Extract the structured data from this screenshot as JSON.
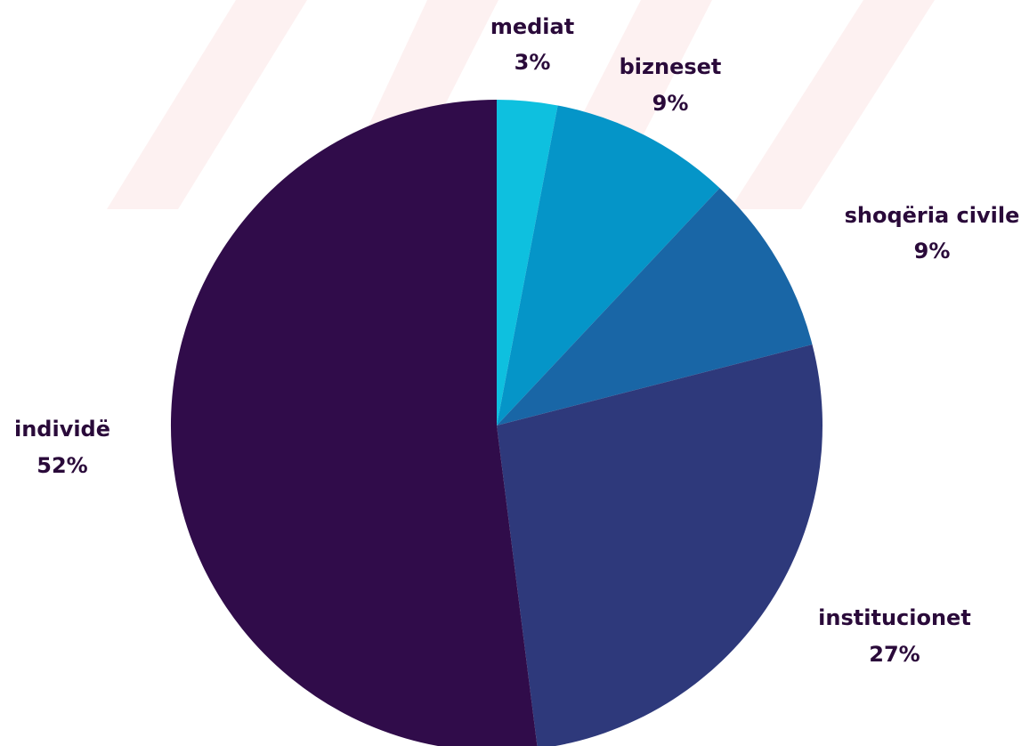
{
  "chart_data": {
    "type": "pie",
    "title": "",
    "start_angle_deg": 0,
    "direction": "clockwise",
    "slices": [
      {
        "label": "mediat",
        "value": 3,
        "value_label": "3%",
        "color": "#0ec0df"
      },
      {
        "label": "bizneset",
        "value": 9,
        "value_label": "9%",
        "color": "#0595c8"
      },
      {
        "label": "shoqëria civile",
        "value": 9,
        "value_label": "9%",
        "color": "#1966a6"
      },
      {
        "label": "institucionet",
        "value": 27,
        "value_label": "27%",
        "color": "#2e397b"
      },
      {
        "label": "individë",
        "value": 52,
        "value_label": "52%",
        "color": "#300c4a"
      }
    ]
  },
  "background": {
    "watermark_color": "#fdf1f1"
  }
}
